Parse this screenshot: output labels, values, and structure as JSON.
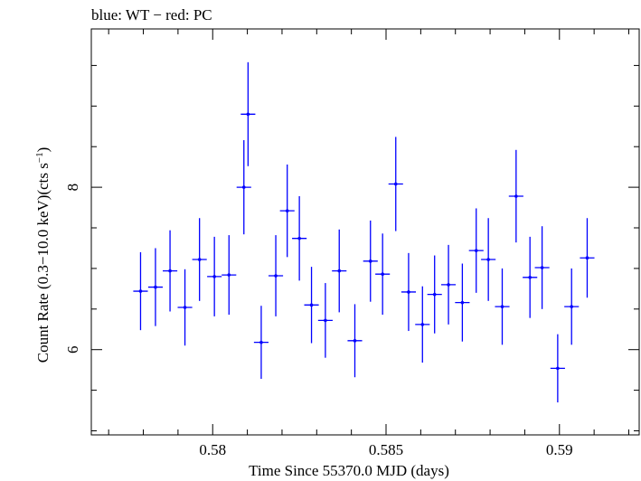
{
  "chart_data": {
    "type": "scatter",
    "title": "blue: WT − red: PC",
    "xlabel": "Time Since 55370.0 MJD (days)",
    "ylabel_main": "Count Rate (0.3−10.0 keV)(cts s",
    "ylabel_sup": "−1",
    "ylabel_end": ")",
    "xlim": [
      0.5765,
      0.5923
    ],
    "ylim": [
      4.95,
      9.95
    ],
    "xticks": [
      0.58,
      0.585,
      0.59
    ],
    "xtick_labels": [
      "0.58",
      "0.585",
      "0.59"
    ],
    "yticks": [
      6,
      8
    ],
    "ytick_labels": [
      "6",
      "8"
    ],
    "x_halfwidth": 0.00021,
    "grid": false,
    "series": [
      {
        "color": "#0000ff",
        "points": [
          {
            "x": 0.57792,
            "y": 6.72,
            "yerr": 0.48
          },
          {
            "x": 0.57835,
            "y": 6.77,
            "yerr": 0.48
          },
          {
            "x": 0.57877,
            "y": 6.97,
            "yerr": 0.5
          },
          {
            "x": 0.5792,
            "y": 6.52,
            "yerr": 0.47
          },
          {
            "x": 0.57962,
            "y": 7.11,
            "yerr": 0.51
          },
          {
            "x": 0.58005,
            "y": 6.9,
            "yerr": 0.49
          },
          {
            "x": 0.58047,
            "y": 6.92,
            "yerr": 0.49
          },
          {
            "x": 0.5809,
            "y": 8.0,
            "yerr": 0.58
          },
          {
            "x": 0.58102,
            "y": 8.9,
            "yerr": 0.64
          },
          {
            "x": 0.5814,
            "y": 6.09,
            "yerr": 0.45
          },
          {
            "x": 0.58182,
            "y": 6.91,
            "yerr": 0.5
          },
          {
            "x": 0.58215,
            "y": 7.71,
            "yerr": 0.57
          },
          {
            "x": 0.5825,
            "y": 7.37,
            "yerr": 0.52
          },
          {
            "x": 0.58285,
            "y": 6.55,
            "yerr": 0.47
          },
          {
            "x": 0.58325,
            "y": 6.36,
            "yerr": 0.46
          },
          {
            "x": 0.58365,
            "y": 6.97,
            "yerr": 0.51
          },
          {
            "x": 0.5841,
            "y": 6.11,
            "yerr": 0.45
          },
          {
            "x": 0.58455,
            "y": 7.09,
            "yerr": 0.5
          },
          {
            "x": 0.5849,
            "y": 6.93,
            "yerr": 0.5
          },
          {
            "x": 0.58528,
            "y": 8.04,
            "yerr": 0.58
          },
          {
            "x": 0.58565,
            "y": 6.71,
            "yerr": 0.48
          },
          {
            "x": 0.58605,
            "y": 6.31,
            "yerr": 0.47
          },
          {
            "x": 0.5864,
            "y": 6.68,
            "yerr": 0.48
          },
          {
            "x": 0.5868,
            "y": 6.8,
            "yerr": 0.49
          },
          {
            "x": 0.5872,
            "y": 6.58,
            "yerr": 0.48
          },
          {
            "x": 0.5876,
            "y": 7.22,
            "yerr": 0.52
          },
          {
            "x": 0.58795,
            "y": 7.11,
            "yerr": 0.51
          },
          {
            "x": 0.58835,
            "y": 6.53,
            "yerr": 0.47
          },
          {
            "x": 0.58875,
            "y": 7.89,
            "yerr": 0.57
          },
          {
            "x": 0.58915,
            "y": 6.89,
            "yerr": 0.5
          },
          {
            "x": 0.5895,
            "y": 7.01,
            "yerr": 0.51
          },
          {
            "x": 0.58995,
            "y": 5.77,
            "yerr": 0.42
          },
          {
            "x": 0.59035,
            "y": 6.53,
            "yerr": 0.47
          },
          {
            "x": 0.5908,
            "y": 7.13,
            "yerr": 0.49
          }
        ]
      }
    ]
  }
}
